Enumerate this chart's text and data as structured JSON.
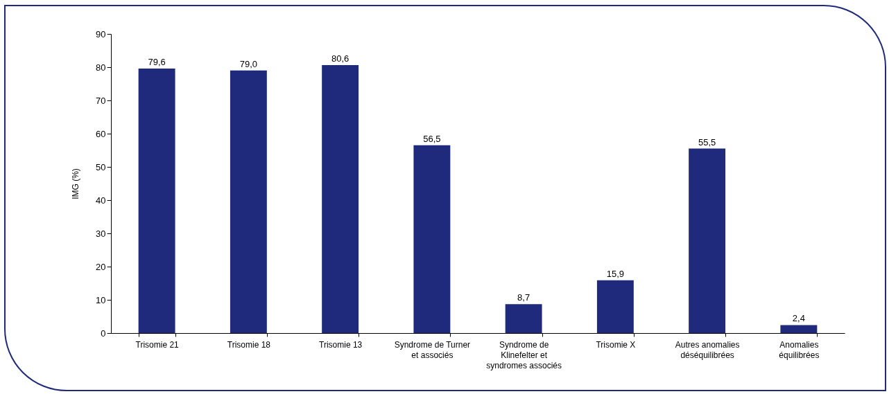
{
  "chart_data": {
    "type": "bar",
    "ylabel": "IMG (%)",
    "categories": [
      "Trisomie 21",
      "Trisomie 18",
      "Trisomie 13",
      "Syndrome de Turner et associés",
      "Syndrome de Klinefelter et syndromes associés",
      "Trisomie X",
      "Autres anomalies déséquilibrées",
      "Anomalies équilibrées"
    ],
    "values": [
      79.6,
      79.0,
      80.6,
      56.5,
      8.7,
      15.9,
      55.5,
      2.4
    ],
    "value_labels": [
      "79,6",
      "79,0",
      "80,6",
      "56,5",
      "8,7",
      "15,9",
      "55,5",
      "2,4"
    ],
    "color": "#1f2a7c",
    "ylim": [
      0,
      90
    ],
    "yticks": [
      0,
      10,
      20,
      30,
      40,
      50,
      60,
      70,
      80,
      90
    ],
    "grid": false
  }
}
